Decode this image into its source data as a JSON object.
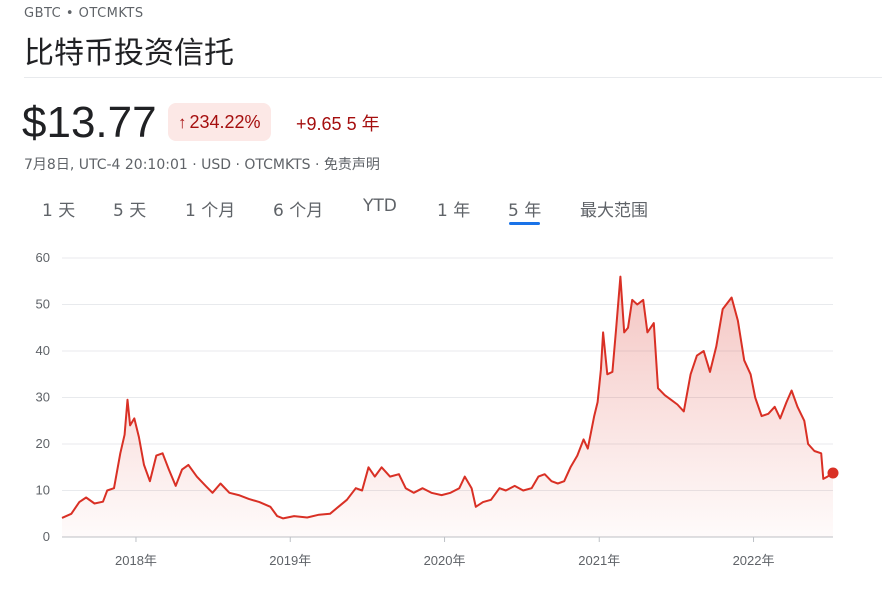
{
  "header": {
    "ticker": "GBTC • OTCMKTS",
    "name": "比特币投资信托"
  },
  "quote": {
    "price": "$13.77",
    "change_pct": "234.22%",
    "change_abs": "+9.65",
    "period": "5 年",
    "direction_icon": "arrow-up-icon",
    "meta": "7月8日, UTC-4 20:10:01 · USD · OTCMKTS · 免责声明"
  },
  "tabs": [
    {
      "label": "1 天",
      "active": false
    },
    {
      "label": "5 天",
      "active": false
    },
    {
      "label": "1 个月",
      "active": false
    },
    {
      "label": "6 个月",
      "active": false
    },
    {
      "label": "YTD",
      "active": false
    },
    {
      "label": "1 年",
      "active": false
    },
    {
      "label": "5 年",
      "active": true
    },
    {
      "label": "最大范围",
      "active": false
    }
  ],
  "colors": {
    "negative_red": "#a50e0e",
    "line": "#d93025",
    "active_tab": "#1a73e8",
    "grid": "#e8eaed"
  },
  "chart_data": {
    "type": "area",
    "title": "",
    "xlabel": "",
    "ylabel": "",
    "ylim": [
      0,
      60
    ],
    "yticks": [
      0,
      10,
      20,
      30,
      40,
      50,
      60
    ],
    "xticks": [
      "2018年",
      "2019年",
      "2020年",
      "2021年",
      "2022年"
    ],
    "xlim": [
      "2017-07-10",
      "2022-07-08"
    ],
    "grid": true,
    "series": [
      {
        "values": [
          [
            "2017-07-10",
            4.1
          ],
          [
            "2017-08-01",
            5.0
          ],
          [
            "2017-08-20",
            7.5
          ],
          [
            "2017-09-05",
            8.5
          ],
          [
            "2017-09-25",
            7.2
          ],
          [
            "2017-10-15",
            7.6
          ],
          [
            "2017-10-25",
            10.0
          ],
          [
            "2017-11-10",
            10.5
          ],
          [
            "2017-11-25",
            18.0
          ],
          [
            "2017-12-05",
            22.0
          ],
          [
            "2017-12-12",
            29.5
          ],
          [
            "2017-12-18",
            24.0
          ],
          [
            "2017-12-28",
            25.5
          ],
          [
            "2018-01-08",
            21.5
          ],
          [
            "2018-01-20",
            15.5
          ],
          [
            "2018-02-03",
            12.0
          ],
          [
            "2018-02-18",
            17.5
          ],
          [
            "2018-03-05",
            18.0
          ],
          [
            "2018-03-20",
            14.5
          ],
          [
            "2018-04-05",
            11.0
          ],
          [
            "2018-04-20",
            14.5
          ],
          [
            "2018-05-05",
            15.5
          ],
          [
            "2018-05-25",
            13.0
          ],
          [
            "2018-06-15",
            11.0
          ],
          [
            "2018-07-01",
            9.5
          ],
          [
            "2018-07-20",
            11.5
          ],
          [
            "2018-08-10",
            9.5
          ],
          [
            "2018-09-01",
            9.0
          ],
          [
            "2018-09-25",
            8.2
          ],
          [
            "2018-10-20",
            7.5
          ],
          [
            "2018-11-15",
            6.5
          ],
          [
            "2018-12-01",
            4.5
          ],
          [
            "2018-12-15",
            4.0
          ],
          [
            "2019-01-10",
            4.5
          ],
          [
            "2019-02-10",
            4.2
          ],
          [
            "2019-03-10",
            4.8
          ],
          [
            "2019-04-05",
            5.0
          ],
          [
            "2019-04-25",
            6.5
          ],
          [
            "2019-05-15",
            8.0
          ],
          [
            "2019-06-05",
            10.5
          ],
          [
            "2019-06-20",
            10.0
          ],
          [
            "2019-07-05",
            15.0
          ],
          [
            "2019-07-20",
            13.0
          ],
          [
            "2019-08-05",
            15.0
          ],
          [
            "2019-08-25",
            13.0
          ],
          [
            "2019-09-15",
            13.5
          ],
          [
            "2019-10-01",
            10.5
          ],
          [
            "2019-10-20",
            9.5
          ],
          [
            "2019-11-10",
            10.5
          ],
          [
            "2019-12-01",
            9.5
          ],
          [
            "2019-12-25",
            9.0
          ],
          [
            "2020-01-15",
            9.5
          ],
          [
            "2020-02-05",
            10.5
          ],
          [
            "2020-02-18",
            13.0
          ],
          [
            "2020-03-05",
            10.5
          ],
          [
            "2020-03-15",
            6.5
          ],
          [
            "2020-04-01",
            7.5
          ],
          [
            "2020-04-20",
            8.0
          ],
          [
            "2020-05-10",
            10.5
          ],
          [
            "2020-05-25",
            10.0
          ],
          [
            "2020-06-15",
            11.0
          ],
          [
            "2020-07-05",
            10.0
          ],
          [
            "2020-07-25",
            10.5
          ],
          [
            "2020-08-10",
            13.0
          ],
          [
            "2020-08-25",
            13.5
          ],
          [
            "2020-09-10",
            12.0
          ],
          [
            "2020-09-25",
            11.5
          ],
          [
            "2020-10-10",
            12.0
          ],
          [
            "2020-10-25",
            15.0
          ],
          [
            "2020-11-10",
            17.5
          ],
          [
            "2020-11-25",
            21.0
          ],
          [
            "2020-12-05",
            19.0
          ],
          [
            "2020-12-20",
            26.0
          ],
          [
            "2020-12-28",
            29.0
          ],
          [
            "2021-01-05",
            36.0
          ],
          [
            "2021-01-10",
            44.0
          ],
          [
            "2021-01-20",
            35.0
          ],
          [
            "2021-02-01",
            35.5
          ],
          [
            "2021-02-10",
            45.0
          ],
          [
            "2021-02-20",
            56.0
          ],
          [
            "2021-03-01",
            44.0
          ],
          [
            "2021-03-10",
            45.0
          ],
          [
            "2021-03-20",
            51.0
          ],
          [
            "2021-04-01",
            50.0
          ],
          [
            "2021-04-15",
            51.0
          ],
          [
            "2021-04-25",
            44.0
          ],
          [
            "2021-05-10",
            46.0
          ],
          [
            "2021-05-20",
            32.0
          ],
          [
            "2021-06-05",
            30.5
          ],
          [
            "2021-06-20",
            29.5
          ],
          [
            "2021-07-05",
            28.5
          ],
          [
            "2021-07-20",
            27.0
          ],
          [
            "2021-08-05",
            35.0
          ],
          [
            "2021-08-20",
            39.0
          ],
          [
            "2021-09-05",
            40.0
          ],
          [
            "2021-09-20",
            35.5
          ],
          [
            "2021-10-05",
            41.0
          ],
          [
            "2021-10-20",
            49.0
          ],
          [
            "2021-11-10",
            51.5
          ],
          [
            "2021-11-25",
            46.5
          ],
          [
            "2021-12-10",
            38.0
          ],
          [
            "2021-12-25",
            35.0
          ],
          [
            "2022-01-05",
            30.0
          ],
          [
            "2022-01-20",
            26.0
          ],
          [
            "2022-02-05",
            26.5
          ],
          [
            "2022-02-20",
            28.0
          ],
          [
            "2022-03-05",
            25.5
          ],
          [
            "2022-03-20",
            29.0
          ],
          [
            "2022-04-01",
            31.5
          ],
          [
            "2022-04-15",
            28.0
          ],
          [
            "2022-05-01",
            25.0
          ],
          [
            "2022-05-10",
            20.0
          ],
          [
            "2022-05-25",
            18.5
          ],
          [
            "2022-06-10",
            18.0
          ],
          [
            "2022-06-15",
            12.5
          ],
          [
            "2022-06-25",
            13.0
          ],
          [
            "2022-07-08",
            13.77
          ]
        ]
      }
    ]
  }
}
